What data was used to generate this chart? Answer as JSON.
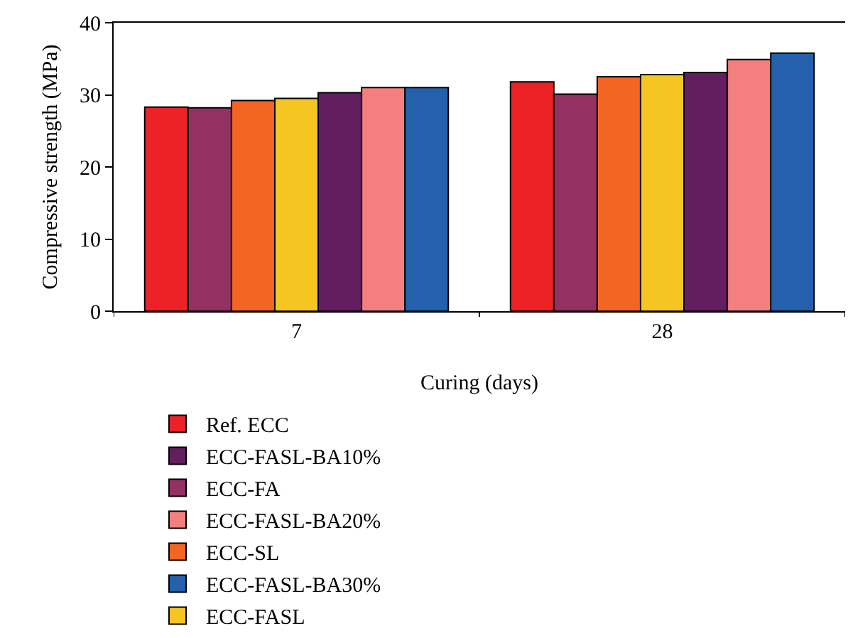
{
  "chart_data": {
    "type": "bar",
    "xlabel": "Curing (days)",
    "ylabel": "Compressive strength (MPa)",
    "categories": [
      "7",
      "28"
    ],
    "ylim": [
      0,
      40
    ],
    "yticks": [
      0,
      10,
      20,
      30,
      40
    ],
    "grid": false,
    "legend": "bottom",
    "series": [
      {
        "name": "Ref. ECC",
        "color": "#ec2227",
        "values": [
          28.3,
          31.8
        ]
      },
      {
        "name": "ECC-FA",
        "color": "#933262",
        "values": [
          28.2,
          30.1
        ]
      },
      {
        "name": "ECC-SL",
        "color": "#f26522",
        "values": [
          29.2,
          32.5
        ]
      },
      {
        "name": "ECC-FASL",
        "color": "#f5c522",
        "values": [
          29.5,
          32.8
        ]
      },
      {
        "name": "ECC-FASL-BA10%",
        "color": "#621e5f",
        "values": [
          30.3,
          33.1
        ]
      },
      {
        "name": "ECC-FASL-BA20%",
        "color": "#f37f7f",
        "values": [
          31.0,
          34.9
        ]
      },
      {
        "name": "ECC-FASL-BA30%",
        "color": "#2460ab",
        "values": [
          31.0,
          35.8
        ]
      }
    ]
  }
}
